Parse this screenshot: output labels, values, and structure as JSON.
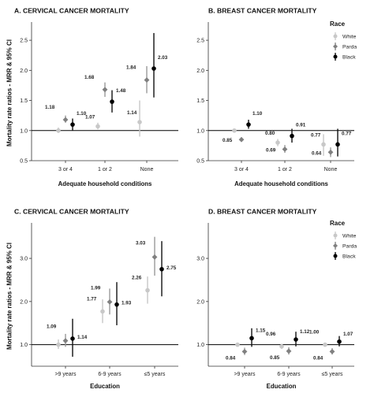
{
  "legend": {
    "title": "Race",
    "entries": [
      {
        "name": "White",
        "color": "#c8c8c8"
      },
      {
        "name": "Parda",
        "color": "#808080"
      },
      {
        "name": "Black",
        "color": "#000000"
      }
    ]
  },
  "chart_data": [
    {
      "type": "scatter",
      "title": "A. CERVICAL CANCER MORTALITY",
      "xlabel": "Adequate household conditions",
      "ylabel": "Mortality rate ratios - MRR & 95% CI",
      "categories": [
        "3 or 4",
        "1 or 2",
        "None"
      ],
      "ylim": [
        0.5,
        2.75
      ],
      "yticks": [
        0.5,
        1.0,
        1.5,
        2.0,
        2.5
      ],
      "reference_line": 1.0,
      "series": [
        {
          "name": "White",
          "values": [
            1.0,
            1.07,
            1.14
          ],
          "ci_low": [
            0.96,
            1.02,
            0.9
          ],
          "ci_high": [
            1.05,
            1.13,
            1.5
          ],
          "labels": [
            "",
            "1.07",
            "1.14"
          ]
        },
        {
          "name": "Parda",
          "values": [
            1.18,
            1.68,
            1.84
          ],
          "ci_low": [
            1.13,
            1.56,
            1.62
          ],
          "ci_high": [
            1.25,
            1.8,
            2.07
          ],
          "labels": [
            "1.18",
            "1.68",
            "1.84"
          ]
        },
        {
          "name": "Black",
          "values": [
            1.1,
            1.48,
            2.03
          ],
          "ci_low": [
            1.0,
            1.3,
            1.55
          ],
          "ci_high": [
            1.2,
            1.67,
            2.62
          ],
          "labels": [
            "1.10",
            "1.48",
            "2.03"
          ]
        }
      ]
    },
    {
      "type": "scatter",
      "title": "B. BREAST CANCER MORTALITY",
      "xlabel": "Adequate household conditions",
      "ylabel": "",
      "categories": [
        "3 or 4",
        "1 or 2",
        "None"
      ],
      "ylim": [
        0.5,
        2.75
      ],
      "yticks": [
        0.5,
        1.0,
        1.5,
        2.0,
        2.5
      ],
      "reference_line": 1.0,
      "series": [
        {
          "name": "White",
          "values": [
            1.0,
            0.8,
            0.77
          ],
          "ci_low": [
            0.97,
            0.74,
            0.58
          ],
          "ci_high": [
            1.03,
            0.86,
            0.94
          ],
          "labels": [
            "",
            "0.80",
            "0.77"
          ]
        },
        {
          "name": "Parda",
          "values": [
            0.85,
            0.69,
            0.64
          ],
          "ci_low": [
            0.82,
            0.63,
            0.56
          ],
          "ci_high": [
            0.89,
            0.76,
            0.72
          ],
          "labels": [
            "0.85",
            "0.69",
            "0.64"
          ]
        },
        {
          "name": "Black",
          "values": [
            1.1,
            0.91,
            0.77
          ],
          "ci_low": [
            1.03,
            0.8,
            0.57
          ],
          "ci_high": [
            1.18,
            1.03,
            1.03
          ],
          "labels": [
            "1.10",
            "0.91",
            "0.77"
          ]
        }
      ]
    },
    {
      "type": "scatter",
      "title": "C. CERVICAL CANCER MORTALITY",
      "xlabel": "Education",
      "ylabel": "Mortality rate ratios - MRR & 95% CI",
      "categories": [
        ">9 years",
        "6-9 years",
        "≤5 years"
      ],
      "ylim": [
        0.5,
        3.75
      ],
      "yticks": [
        1.0,
        2.0,
        3.0
      ],
      "reference_line": 1.0,
      "series": [
        {
          "name": "White",
          "values": [
            1.0,
            1.77,
            2.26
          ],
          "ci_low": [
            0.9,
            1.5,
            1.95
          ],
          "ci_high": [
            1.12,
            2.05,
            2.58
          ],
          "labels": [
            "",
            "1.77",
            "2.26"
          ]
        },
        {
          "name": "Parda",
          "values": [
            1.09,
            1.99,
            3.03
          ],
          "ci_low": [
            0.95,
            1.7,
            2.6
          ],
          "ci_high": [
            1.25,
            2.3,
            3.5
          ],
          "labels": [
            "1.09",
            "1.99",
            "3.03"
          ]
        },
        {
          "name": "Black",
          "values": [
            1.14,
            1.93,
            2.75
          ],
          "ci_low": [
            0.72,
            1.45,
            2.12
          ],
          "ci_high": [
            1.6,
            2.45,
            3.4
          ],
          "labels": [
            "1.14",
            "1.93",
            "2.75"
          ]
        }
      ]
    },
    {
      "type": "scatter",
      "title": "D. BREAST CANCER MORTALITY",
      "xlabel": "Education",
      "ylabel": "",
      "categories": [
        ">9 years",
        "6-9 years",
        "≤5 years"
      ],
      "ylim": [
        0.5,
        3.75
      ],
      "yticks": [
        1.0,
        2.0,
        3.0
      ],
      "reference_line": 1.0,
      "series": [
        {
          "name": "White",
          "values": [
            1.0,
            0.96,
            1.0
          ],
          "ci_low": [
            0.95,
            0.9,
            0.95
          ],
          "ci_high": [
            1.05,
            1.02,
            1.05
          ],
          "labels": [
            "",
            "0.96",
            "1.00"
          ]
        },
        {
          "name": "Parda",
          "values": [
            0.84,
            0.85,
            0.84
          ],
          "ci_low": [
            0.76,
            0.77,
            0.77
          ],
          "ci_high": [
            0.93,
            0.94,
            0.92
          ],
          "labels": [
            "0.84",
            "0.85",
            "0.84"
          ]
        },
        {
          "name": "Black",
          "values": [
            1.15,
            1.12,
            1.07
          ],
          "ci_low": [
            0.95,
            0.96,
            0.96
          ],
          "ci_high": [
            1.38,
            1.3,
            1.2
          ],
          "labels": [
            "1.15",
            "1.12",
            "1.07"
          ]
        }
      ]
    }
  ]
}
